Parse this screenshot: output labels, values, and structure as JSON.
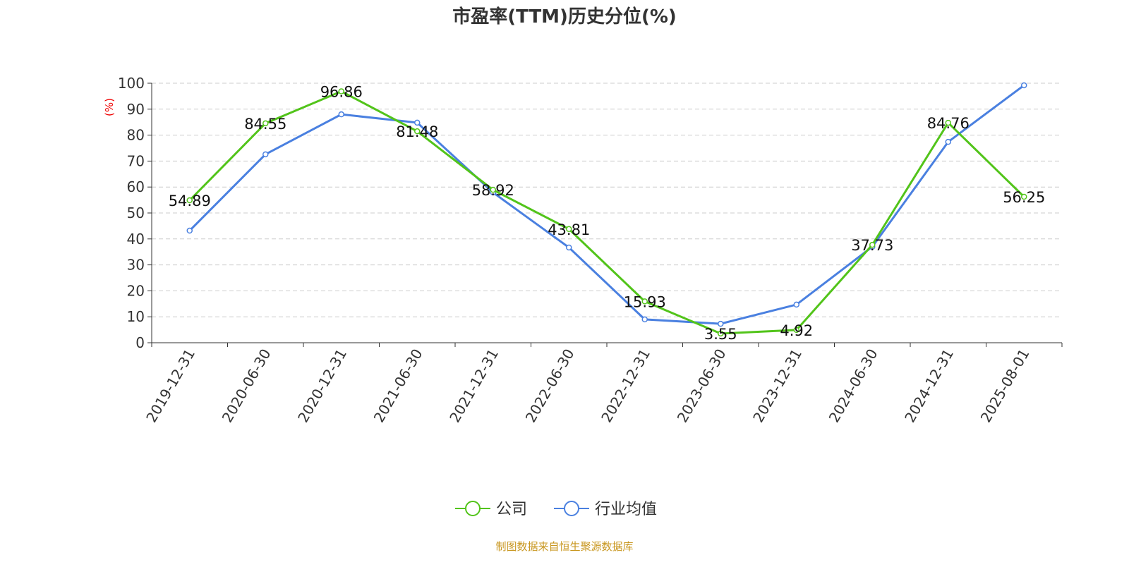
{
  "chart_data": {
    "type": "line",
    "title": "市盈率(TTM)历史分位(%)",
    "ylabel": "(%)",
    "xlabel": "",
    "ylim": [
      0,
      100
    ],
    "yticks": [
      0,
      10,
      20,
      30,
      40,
      50,
      60,
      70,
      80,
      90,
      100
    ],
    "grid": true,
    "legend_position": "bottom",
    "categories": [
      "2019-12-31",
      "2020-06-30",
      "2020-12-31",
      "2021-06-30",
      "2021-12-31",
      "2022-06-30",
      "2022-12-31",
      "2023-06-30",
      "2023-12-31",
      "2024-06-30",
      "2024-12-31",
      "2025-08-01"
    ],
    "series": [
      {
        "name": "公司",
        "color": "#52c41a",
        "labeled": true,
        "values": [
          54.89,
          84.55,
          96.86,
          81.48,
          58.92,
          43.81,
          15.93,
          3.55,
          4.92,
          37.73,
          84.76,
          56.25
        ]
      },
      {
        "name": "行业均值",
        "color": "#4a80e0",
        "labeled": false,
        "values": [
          43.2,
          72.6,
          88.0,
          84.8,
          57.9,
          36.7,
          9.0,
          7.3,
          14.7,
          37.0,
          77.4,
          99.2
        ]
      }
    ]
  },
  "footer": "制图数据来自恒生聚源数据库"
}
